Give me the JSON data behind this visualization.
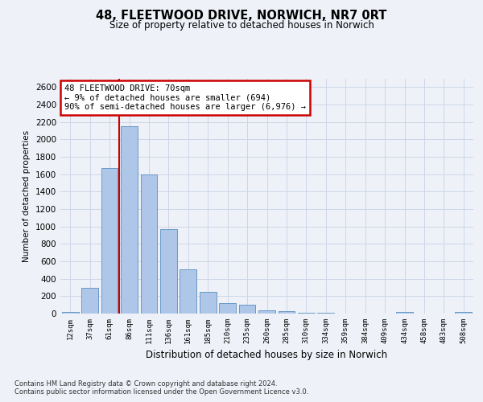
{
  "title1": "48, FLEETWOOD DRIVE, NORWICH, NR7 0RT",
  "title2": "Size of property relative to detached houses in Norwich",
  "xlabel": "Distribution of detached houses by size in Norwich",
  "ylabel": "Number of detached properties",
  "categories": [
    "12sqm",
    "37sqm",
    "61sqm",
    "86sqm",
    "111sqm",
    "136sqm",
    "161sqm",
    "185sqm",
    "210sqm",
    "235sqm",
    "260sqm",
    "285sqm",
    "310sqm",
    "334sqm",
    "359sqm",
    "384sqm",
    "409sqm",
    "434sqm",
    "458sqm",
    "483sqm",
    "508sqm"
  ],
  "values": [
    20,
    300,
    1670,
    2150,
    1600,
    970,
    510,
    245,
    120,
    100,
    40,
    30,
    10,
    5,
    3,
    2,
    2,
    15,
    2,
    2,
    20
  ],
  "bar_color": "#aec6e8",
  "bar_edge_color": "#5a8fc0",
  "grid_color": "#ccd6e8",
  "vline_color": "#cc0000",
  "vline_pos": 2.5,
  "annotation_text": "48 FLEETWOOD DRIVE: 70sqm\n← 9% of detached houses are smaller (694)\n90% of semi-detached houses are larger (6,976) →",
  "annotation_box_color": "white",
  "annotation_box_edge": "#cc0000",
  "ylim": [
    0,
    2700
  ],
  "yticks": [
    0,
    200,
    400,
    600,
    800,
    1000,
    1200,
    1400,
    1600,
    1800,
    2000,
    2200,
    2400,
    2600
  ],
  "footer1": "Contains HM Land Registry data © Crown copyright and database right 2024.",
  "footer2": "Contains public sector information licensed under the Open Government Licence v3.0.",
  "bg_color": "#eef2f8"
}
